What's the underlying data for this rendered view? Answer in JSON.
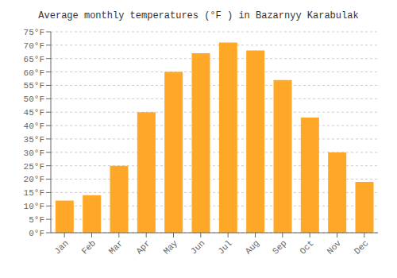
{
  "chart_data": {
    "type": "bar",
    "title": "Average monthly temperatures (°F ) in Bazarnyy Karabulak",
    "categories": [
      "Jan",
      "Feb",
      "Mar",
      "Apr",
      "May",
      "Jun",
      "Jul",
      "Aug",
      "Sep",
      "Oct",
      "Nov",
      "Dec"
    ],
    "values": [
      12,
      14,
      25,
      45,
      60,
      67,
      71,
      68,
      57,
      43,
      30,
      19
    ],
    "color": "#FFA726",
    "ylim": [
      0,
      75
    ],
    "yticks": [
      {
        "value": 0,
        "label": "0°F"
      },
      {
        "value": 5,
        "label": "5°F"
      },
      {
        "value": 10,
        "label": "10°F"
      },
      {
        "value": 15,
        "label": "15°F"
      },
      {
        "value": 20,
        "label": "20°F"
      },
      {
        "value": 25,
        "label": "25°F"
      },
      {
        "value": 30,
        "label": "30°F"
      },
      {
        "value": 35,
        "label": "35°F"
      },
      {
        "value": 40,
        "label": "40°F"
      },
      {
        "value": 45,
        "label": "45°F"
      },
      {
        "value": 50,
        "label": "50°F"
      },
      {
        "value": 55,
        "label": "55°F"
      },
      {
        "value": 60,
        "label": "60°F"
      },
      {
        "value": 65,
        "label": "65°F"
      },
      {
        "value": 70,
        "label": "70°F"
      },
      {
        "value": 75,
        "label": "75°F"
      }
    ],
    "grid": true
  }
}
